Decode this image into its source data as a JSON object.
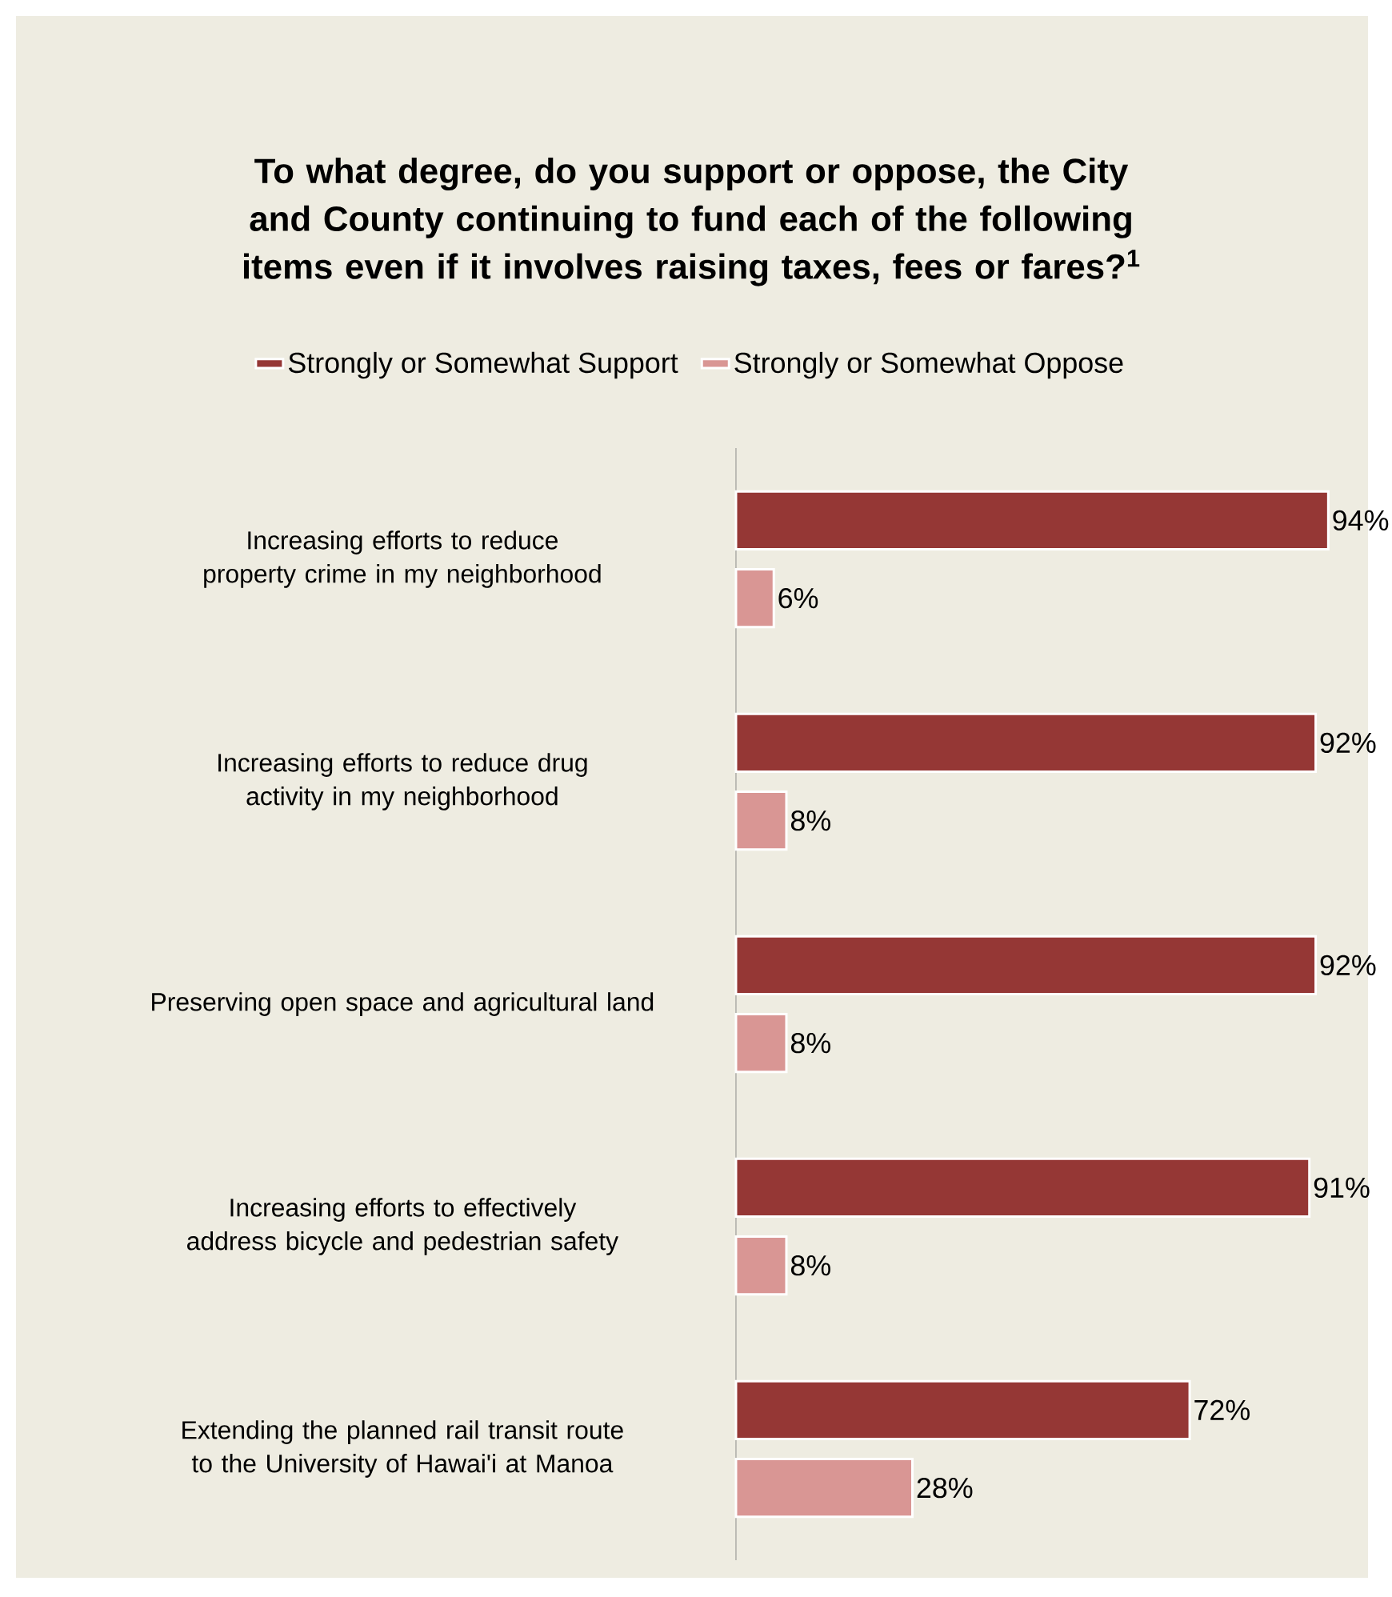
{
  "chart_data": {
    "type": "bar",
    "orientation": "horizontal",
    "title": "To what degree, do you support or oppose, the City and County continuing to fund each of the following items even if it involves raising taxes, fees or fares?$^{1}$",
    "categories": [
      "Increasing efforts to reduce property crime in my neighborhood",
      "Increasing efforts to reduce drug activity in my neighborhood",
      "Preserving open space and agricultural land",
      "Increasing efforts to effectively address bicycle and pedestrian safety",
      "Extending the planned rail transit route to the University of Hawai'i at Manoa"
    ],
    "legend": "top",
    "tick_labels": "y",
    "series": [
      {
        "name": "Strongly or Somewhat Support",
        "color": "#953735",
        "values": [
          94,
          92,
          92,
          91,
          72
        ],
        "value_labels": [
          "94%",
          "92%",
          "92%",
          "91%",
          "72%"
        ]
      },
      {
        "name": "Strongly or Somewhat Oppose",
        "color": "#d99694",
        "values": [
          6,
          8,
          8,
          8,
          28
        ],
        "value_labels": [
          "6%",
          "8%",
          "8%",
          "8%",
          "28%"
        ]
      }
    ]
  }
}
